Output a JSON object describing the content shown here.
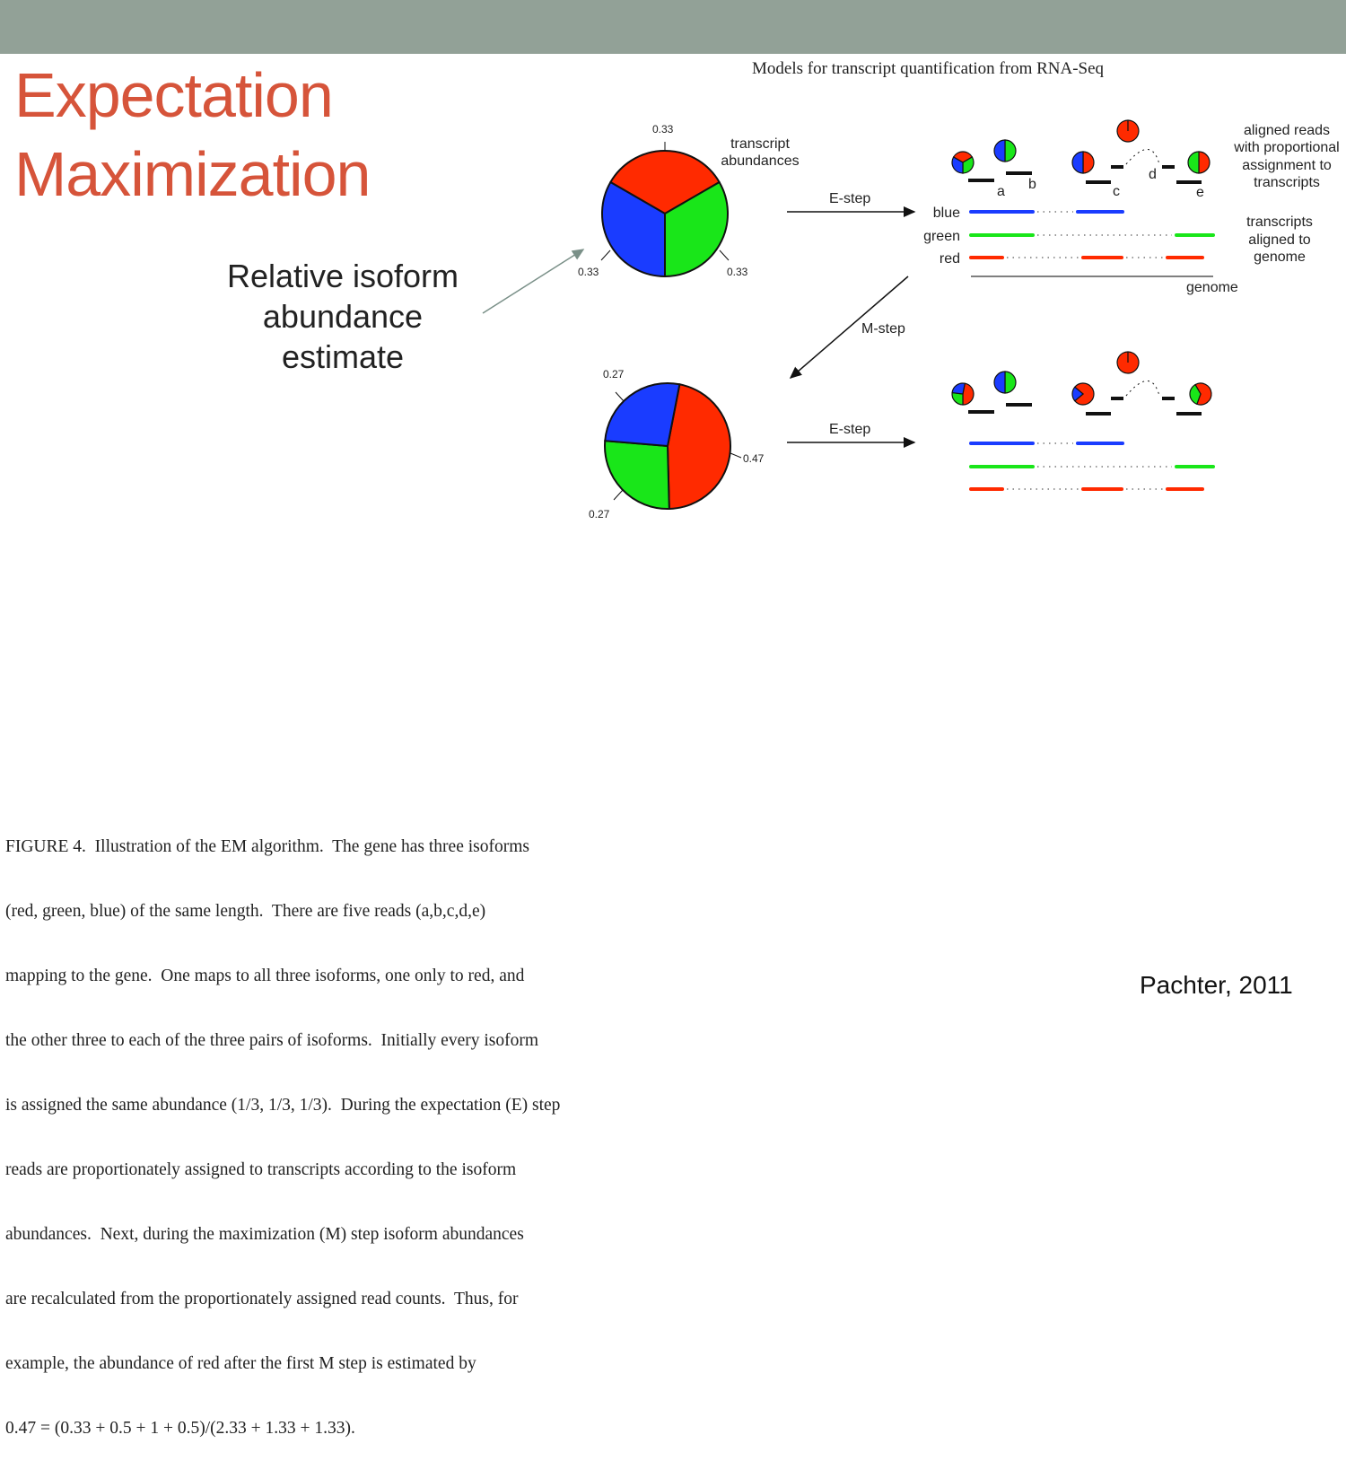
{
  "slide": {
    "title_lines": [
      "Expectation",
      "Maximization"
    ],
    "note_lines": [
      "Relative isoform",
      "abundance",
      "estimate"
    ],
    "citation": "Pachter, 2011"
  },
  "figure": {
    "title": "Models for transcript quantification from RNA-Seq",
    "pie1": {
      "label_lines": [
        "transcript",
        "abundances"
      ],
      "values": {
        "red": 0.33,
        "green": 0.33,
        "blue": 0.33
      },
      "tick_labels": [
        "0.33",
        "0.33",
        "0.33"
      ]
    },
    "pie2": {
      "values": {
        "red": 0.47,
        "green": 0.27,
        "blue": 0.27
      },
      "tick_labels": [
        "0.27",
        "0.47",
        "0.27"
      ]
    },
    "estep_label": "E-step",
    "mstep_label": "M-step",
    "read_labels": [
      "a",
      "b",
      "c",
      "d",
      "e"
    ],
    "transcripts": [
      "blue",
      "green",
      "red"
    ],
    "genome_label": "genome",
    "aligned_reads_lines": [
      "aligned reads",
      "with proportional",
      "assignment to",
      "transcripts"
    ],
    "transcripts_aligned_lines": [
      "transcripts",
      "aligned to",
      "genome"
    ],
    "colors": {
      "red": "#ff2a00",
      "green": "#19e619",
      "blue": "#1a3cff",
      "title": "#d6543a",
      "topbar": "#92a197"
    }
  },
  "caption": {
    "lines": [
      "FIGURE 4.  Illustration of the EM algorithm.  The gene has three isoforms",
      "(red, green, blue) of the same length.  There are five reads (a,b,c,d,e)",
      "mapping to the gene.  One maps to all three isoforms, one only to red, and",
      "the other three to each of the three pairs of isoforms.  Initially every isoform",
      "is assigned the same abundance (1/3, 1/3, 1/3).  During the expectation (E) step",
      "reads are proportionately assigned to transcripts according to the isoform",
      "abundances.  Next, during the maximization (M) step isoform abundances",
      "are recalculated from the proportionately assigned read counts.  Thus, for",
      "example, the abundance of red after the first M step is estimated by",
      "0.47 = (0.33 + 0.5 + 1 + 0.5)/(2.33 + 1.33 + 1.33)."
    ]
  }
}
